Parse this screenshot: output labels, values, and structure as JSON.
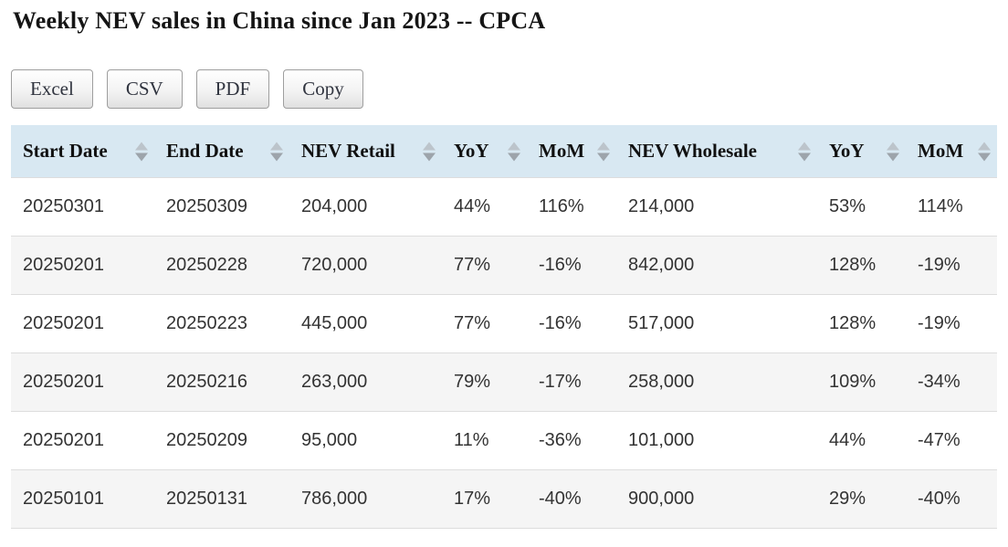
{
  "page": {
    "title": "Weekly NEV sales in China since Jan 2023 -- CPCA"
  },
  "toolbar": {
    "buttons": [
      {
        "label": "Excel"
      },
      {
        "label": "CSV"
      },
      {
        "label": "PDF"
      },
      {
        "label": "Copy"
      }
    ]
  },
  "table": {
    "columns": [
      "Start Date",
      "End Date",
      "NEV Retail",
      "YoY",
      "MoM",
      "NEV Wholesale",
      "YoY",
      "MoM"
    ],
    "rows": [
      [
        "20250301",
        "20250309",
        "204,000",
        "44%",
        "116%",
        "214,000",
        "53%",
        "114%"
      ],
      [
        "20250201",
        "20250228",
        "720,000",
        "77%",
        "-16%",
        "842,000",
        "128%",
        "-19%"
      ],
      [
        "20250201",
        "20250223",
        "445,000",
        "77%",
        "-16%",
        "517,000",
        "128%",
        "-19%"
      ],
      [
        "20250201",
        "20250216",
        "263,000",
        "79%",
        "-17%",
        "258,000",
        "109%",
        "-34%"
      ],
      [
        "20250201",
        "20250209",
        "95,000",
        "11%",
        "-36%",
        "101,000",
        "44%",
        "-47%"
      ],
      [
        "20250101",
        "20250131",
        "786,000",
        "17%",
        "-40%",
        "900,000",
        "29%",
        "-40%"
      ]
    ]
  },
  "colors": {
    "header_bg": "#d8e8f2",
    "stripe_bg": "#f5f5f5",
    "row_border": "#dddddd",
    "sort_arrow_up": "#bcc4cb",
    "sort_arrow_down": "#9da4ab",
    "button_border": "#9e9e9e",
    "body_text": "#333333"
  }
}
